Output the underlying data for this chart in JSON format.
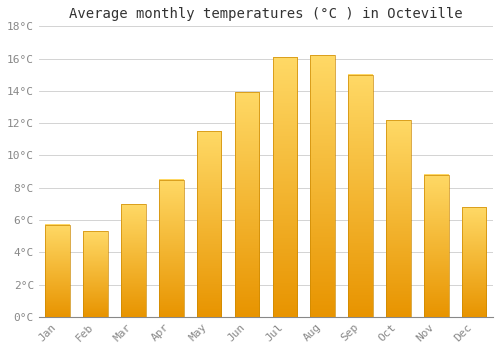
{
  "title": "Average monthly temperatures (°C ) in Octeville",
  "months": [
    "Jan",
    "Feb",
    "Mar",
    "Apr",
    "May",
    "Jun",
    "Jul",
    "Aug",
    "Sep",
    "Oct",
    "Nov",
    "Dec"
  ],
  "values": [
    5.7,
    5.3,
    7.0,
    8.5,
    11.5,
    13.9,
    16.1,
    16.2,
    15.0,
    12.2,
    8.8,
    6.8
  ],
  "bar_color": "#FFA500",
  "bar_color_top": "#FFD966",
  "bar_color_bottom": "#E89400",
  "background_color": "#FFFFFF",
  "grid_color": "#CCCCCC",
  "ylim": [
    0,
    18
  ],
  "yticks": [
    0,
    2,
    4,
    6,
    8,
    10,
    12,
    14,
    16,
    18
  ],
  "ytick_labels": [
    "0°C",
    "2°C",
    "4°C",
    "6°C",
    "8°C",
    "10°C",
    "12°C",
    "14°C",
    "16°C",
    "18°C"
  ],
  "title_fontsize": 10,
  "tick_fontsize": 8,
  "tick_color": "#888888",
  "bar_width": 0.65
}
